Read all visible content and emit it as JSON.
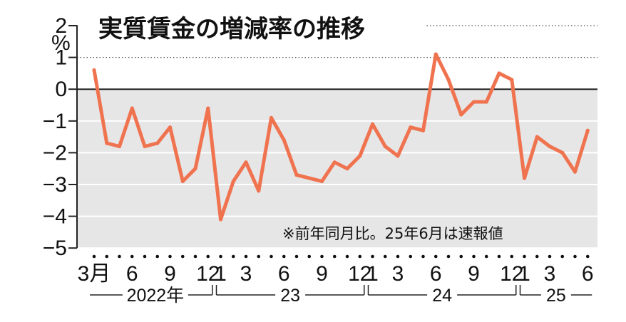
{
  "chart_data": {
    "type": "line",
    "title": "実質賃金の増減率の推移",
    "unit": "%",
    "note": "※前年同月比。25年6月は速報値",
    "ylim": [
      -5,
      2
    ],
    "yticks": [
      "2",
      "1",
      "0",
      "−1",
      "−2",
      "−3",
      "−4",
      "−5"
    ],
    "colors": {
      "line": "#f07350",
      "negative_bg": "#e6e6e6",
      "grid": "#ffffff",
      "zero_line": "#222222"
    },
    "x_tick_labels": [
      {
        "index": 0,
        "label": "3月"
      },
      {
        "index": 3,
        "label": "6"
      },
      {
        "index": 6,
        "label": "9"
      },
      {
        "index": 9,
        "label": "12"
      },
      {
        "index": 10,
        "label": "1"
      },
      {
        "index": 12,
        "label": "3"
      },
      {
        "index": 15,
        "label": "6"
      },
      {
        "index": 18,
        "label": "9"
      },
      {
        "index": 21,
        "label": "12"
      },
      {
        "index": 22,
        "label": "1"
      },
      {
        "index": 24,
        "label": "3"
      },
      {
        "index": 27,
        "label": "6"
      },
      {
        "index": 30,
        "label": "9"
      },
      {
        "index": 33,
        "label": "12"
      },
      {
        "index": 34,
        "label": "1"
      },
      {
        "index": 36,
        "label": "3"
      },
      {
        "index": 39,
        "label": "6"
      }
    ],
    "year_groups": [
      {
        "label": "2022年",
        "start": 0,
        "end": 9
      },
      {
        "label": "23",
        "start": 10,
        "end": 21
      },
      {
        "label": "24",
        "start": 22,
        "end": 33
      },
      {
        "label": "25",
        "start": 34,
        "end": 39
      }
    ],
    "x": [
      "2022-03",
      "2022-04",
      "2022-05",
      "2022-06",
      "2022-07",
      "2022-08",
      "2022-09",
      "2022-10",
      "2022-11",
      "2022-12",
      "2023-01",
      "2023-02",
      "2023-03",
      "2023-04",
      "2023-05",
      "2023-06",
      "2023-07",
      "2023-08",
      "2023-09",
      "2023-10",
      "2023-11",
      "2023-12",
      "2024-01",
      "2024-02",
      "2024-03",
      "2024-04",
      "2024-05",
      "2024-06",
      "2024-07",
      "2024-08",
      "2024-09",
      "2024-10",
      "2024-11",
      "2024-12",
      "2025-01",
      "2025-02",
      "2025-03",
      "2025-04",
      "2025-05",
      "2025-06"
    ],
    "values": [
      0.6,
      -1.7,
      -1.8,
      -0.6,
      -1.8,
      -1.7,
      -1.2,
      -2.9,
      -2.5,
      -0.6,
      -4.1,
      -2.9,
      -2.3,
      -3.2,
      -0.9,
      -1.6,
      -2.7,
      -2.8,
      -2.9,
      -2.3,
      -2.5,
      -2.1,
      -1.1,
      -1.8,
      -2.1,
      -1.2,
      -1.3,
      1.1,
      0.3,
      -0.8,
      -0.4,
      -0.4,
      0.5,
      0.3,
      -2.8,
      -1.5,
      -1.8,
      -2.0,
      -2.6,
      -1.3
    ]
  }
}
